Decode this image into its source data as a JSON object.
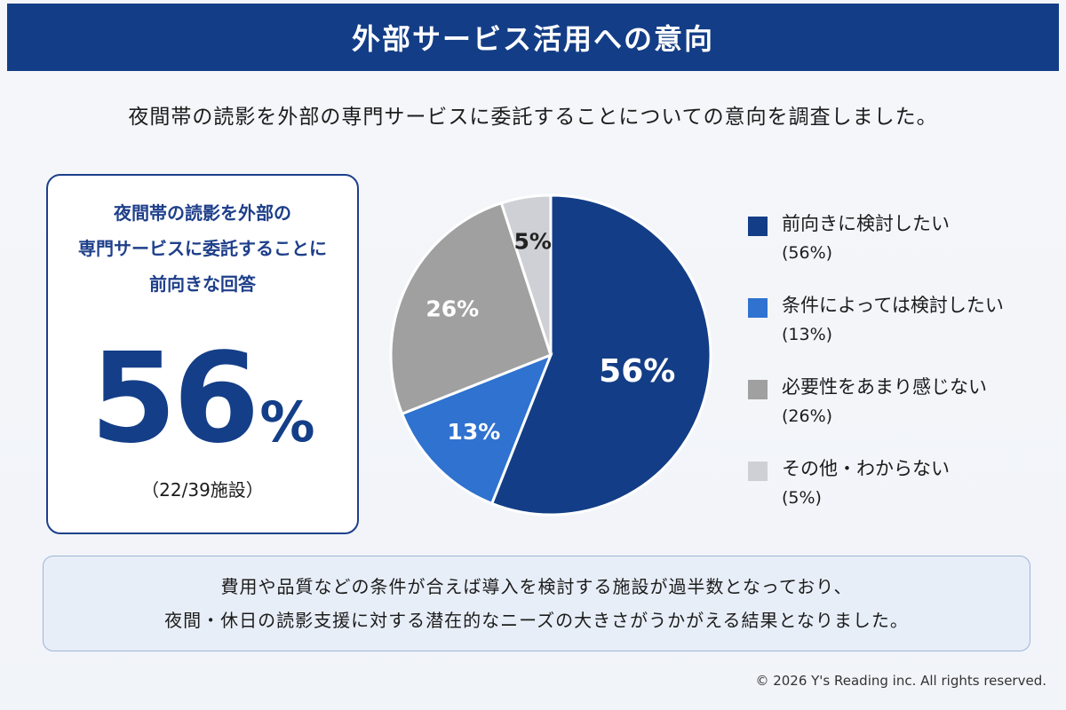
{
  "header": {
    "title": "外部サービス活用への意向"
  },
  "subtitle": "夜間帯の読影を外部の専門サービスに委託することについての意向を調査しました。",
  "highlight": {
    "desc_lines": [
      "夜間帯の読影を外部の",
      "専門サービスに委託することに",
      "前向きな回答"
    ],
    "value": "56",
    "unit": "%",
    "count": "（22/39施設）"
  },
  "chart_data": {
    "type": "pie",
    "categories": [
      "前向きに検討したい",
      "条件によっては検討したい",
      "必要性をあまり感じない",
      "その他・わからない"
    ],
    "values": [
      56,
      13,
      26,
      5
    ],
    "value_labels": [
      "(56%)",
      "(13%)",
      "(26%)",
      "(5%)"
    ],
    "slice_labels": [
      "56%",
      "13%",
      "26%",
      "5%"
    ],
    "colors": [
      "#133d86",
      "#2f72cf",
      "#a0a0a0",
      "#cfd0d5"
    ],
    "label_colors": [
      "#ffffff",
      "#ffffff",
      "#ffffff",
      "#222222"
    ],
    "legend_position": "right"
  },
  "conclusion": {
    "lines": [
      "費用や品質などの条件が合えば導入を検討する施設が過半数となっており、",
      "夜間・休日の読影支援に対する潜在的なニーズの大きさがうかがえる結果となりました。"
    ]
  },
  "footer": {
    "copyright": "© 2026 Y's Reading inc. All rights reserved."
  }
}
